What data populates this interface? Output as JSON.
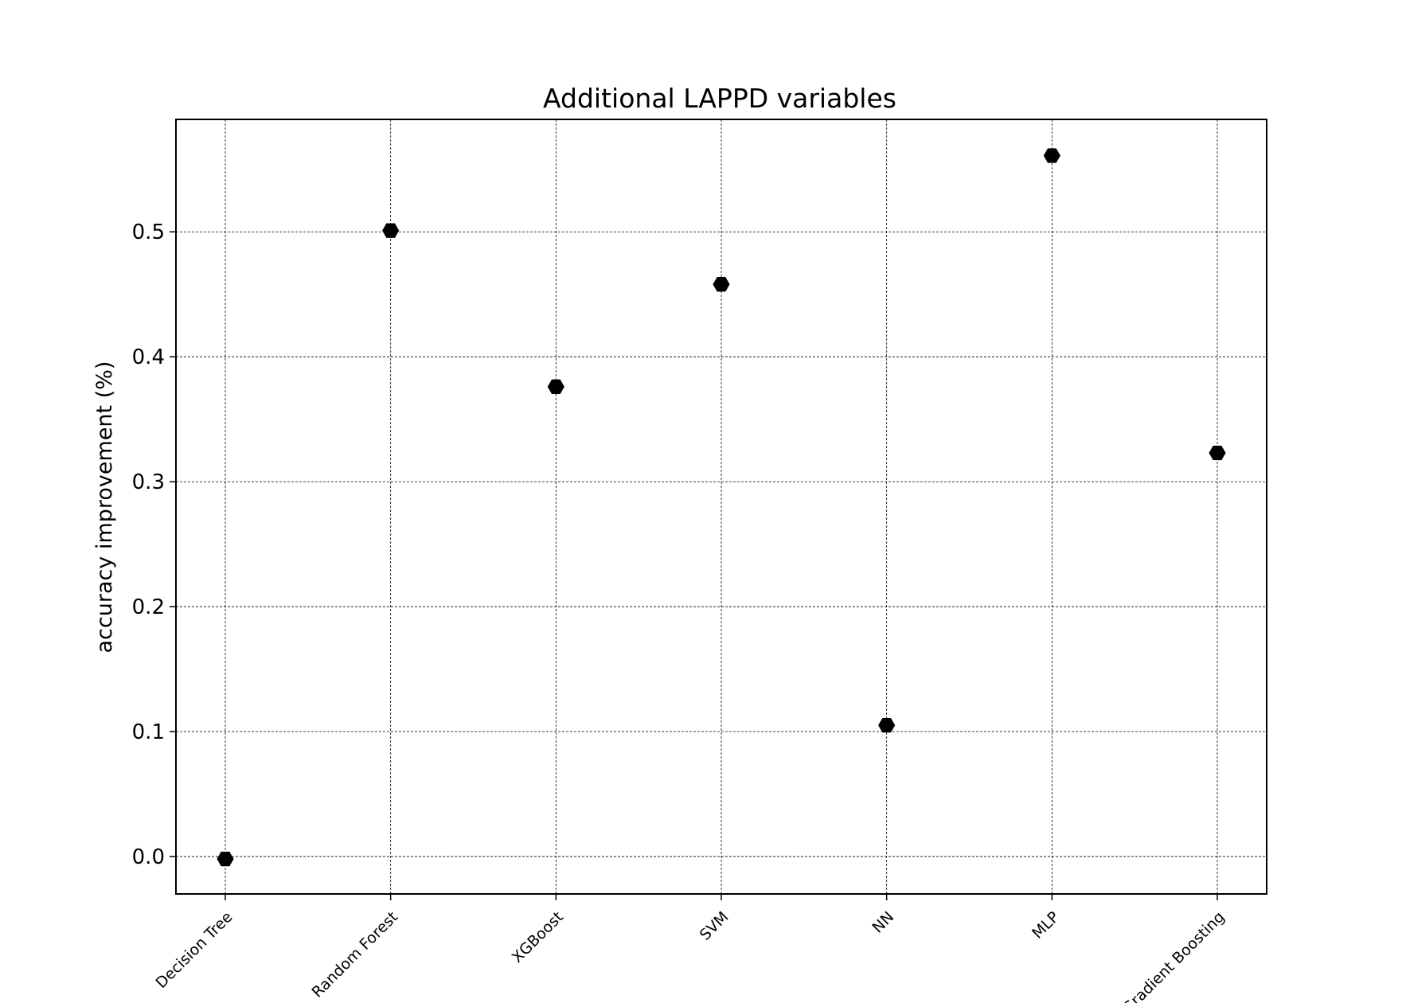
{
  "chart_data": {
    "type": "scatter",
    "title": "Additional LAPPD variables",
    "xlabel": "",
    "ylabel": "accuracy improvement (%)",
    "categories": [
      "Decision Tree",
      "Random Forest",
      "XGBoost",
      "SVM",
      "NN",
      "MLP",
      "Gradient Boosting"
    ],
    "values": [
      -0.002,
      0.501,
      0.376,
      0.458,
      0.105,
      0.561,
      0.323
    ],
    "ylim": [
      -0.03,
      0.59
    ],
    "yticks": [
      "0.0",
      "0.1",
      "0.2",
      "0.3",
      "0.4",
      "0.5"
    ],
    "grid": true,
    "marker": "hexagon",
    "marker_color": "#000000",
    "grid_color": "#000000"
  }
}
